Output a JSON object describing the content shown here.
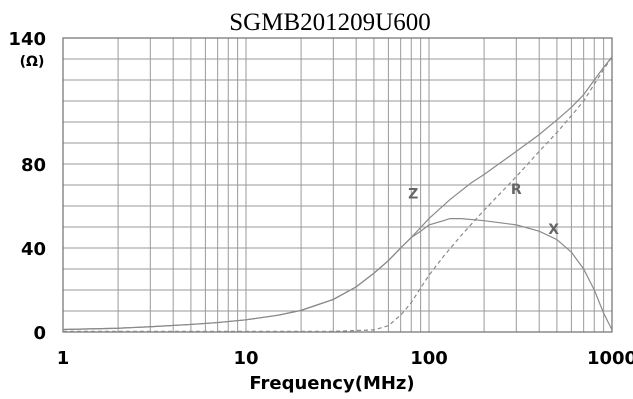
{
  "chart_data": {
    "type": "line",
    "title": "SGMB201209U600",
    "xlabel": "Frequency(MHz)",
    "ylabel": "(Ω)",
    "x_scale": "log",
    "xlim": [
      1,
      1000
    ],
    "ylim": [
      0,
      140
    ],
    "x_ticks": [
      {
        "value": 1,
        "label": "1"
      },
      {
        "value": 10,
        "label": "10"
      },
      {
        "value": 100,
        "label": "100"
      },
      {
        "value": 1000,
        "label": "1000"
      }
    ],
    "y_ticks": [
      {
        "value": 0,
        "label": "0"
      },
      {
        "value": 40,
        "label": "40"
      },
      {
        "value": 80,
        "label": "80"
      },
      {
        "value": 140,
        "label": "140"
      }
    ],
    "grid": true,
    "series": [
      {
        "name": "Z",
        "label": "Z",
        "color": "#8a8a8a",
        "dash": "solid",
        "label_at": [
          82,
          66
        ],
        "points": [
          [
            1,
            1.2
          ],
          [
            2,
            1.8
          ],
          [
            3,
            2.5
          ],
          [
            5,
            3.6
          ],
          [
            7,
            4.5
          ],
          [
            10,
            5.8
          ],
          [
            15,
            8.0
          ],
          [
            20,
            10.3
          ],
          [
            30,
            15.5
          ],
          [
            40,
            21.5
          ],
          [
            50,
            28
          ],
          [
            60,
            34
          ],
          [
            70,
            40
          ],
          [
            80,
            45
          ],
          [
            100,
            54
          ],
          [
            130,
            63
          ],
          [
            170,
            71
          ],
          [
            200,
            75
          ],
          [
            300,
            86
          ],
          [
            400,
            94
          ],
          [
            500,
            101
          ],
          [
            600,
            107
          ],
          [
            700,
            113
          ],
          [
            800,
            120
          ],
          [
            900,
            126
          ],
          [
            1000,
            131
          ]
        ]
      },
      {
        "name": "R",
        "label": "R",
        "color": "#8a8a8a",
        "dash": "dashed",
        "label_at": [
          300,
          68
        ],
        "points": [
          [
            1,
            0.3
          ],
          [
            10,
            0.3
          ],
          [
            30,
            0.3
          ],
          [
            50,
            1.0
          ],
          [
            60,
            3
          ],
          [
            70,
            8
          ],
          [
            80,
            14
          ],
          [
            90,
            21
          ],
          [
            100,
            27
          ],
          [
            120,
            36
          ],
          [
            150,
            46
          ],
          [
            200,
            58
          ],
          [
            300,
            74
          ],
          [
            400,
            86
          ],
          [
            500,
            95
          ],
          [
            600,
            103
          ],
          [
            700,
            110
          ],
          [
            800,
            118
          ],
          [
            900,
            125
          ],
          [
            1000,
            131
          ]
        ]
      },
      {
        "name": "X",
        "label": "X",
        "color": "#8a8a8a",
        "dash": "solid",
        "label_at": [
          480,
          49
        ],
        "points": [
          [
            1,
            1.2
          ],
          [
            2,
            1.8
          ],
          [
            3,
            2.5
          ],
          [
            5,
            3.6
          ],
          [
            7,
            4.5
          ],
          [
            10,
            5.8
          ],
          [
            15,
            8.0
          ],
          [
            20,
            10.3
          ],
          [
            30,
            15.5
          ],
          [
            40,
            21.5
          ],
          [
            50,
            28
          ],
          [
            60,
            34
          ],
          [
            70,
            40
          ],
          [
            80,
            45
          ],
          [
            90,
            48
          ],
          [
            100,
            51
          ],
          [
            120,
            53
          ],
          [
            130,
            54
          ],
          [
            150,
            54
          ],
          [
            200,
            53
          ],
          [
            300,
            51
          ],
          [
            400,
            48
          ],
          [
            500,
            44
          ],
          [
            600,
            38
          ],
          [
            700,
            30
          ],
          [
            800,
            20
          ],
          [
            900,
            9
          ],
          [
            1000,
            1
          ]
        ]
      }
    ]
  }
}
